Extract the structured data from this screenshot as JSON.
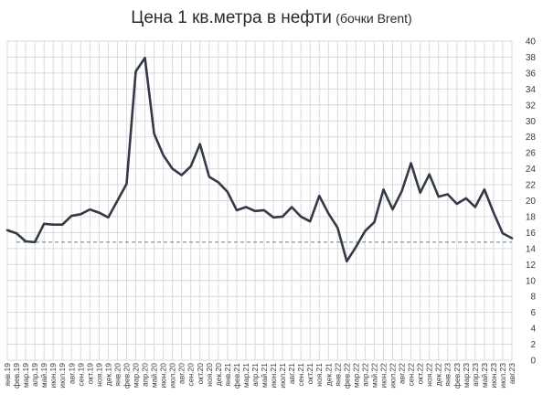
{
  "chart_data": {
    "type": "line",
    "title": "Цена 1 кв.метра в нефти",
    "subtitle": "(бочки Brent)",
    "xlabel": "",
    "ylabel": "",
    "ylim": [
      0,
      40
    ],
    "yticks": [
      0,
      2,
      4,
      6,
      8,
      10,
      12,
      14,
      16,
      18,
      20,
      22,
      24,
      26,
      28,
      30,
      32,
      34,
      36,
      38,
      40
    ],
    "grid": true,
    "y_axis_side": "right",
    "categories": [
      "янв.19",
      "фев.19",
      "мар.19",
      "апр.19",
      "май.19",
      "июн.19",
      "июл.19",
      "авг.19",
      "сен.19",
      "окт.19",
      "ноя.19",
      "дек.19",
      "янв.20",
      "фев.20",
      "мар.20",
      "апр.20",
      "май.20",
      "июн.20",
      "июл.20",
      "авг.20",
      "сен.20",
      "окт.20",
      "ноя.20",
      "дек.20",
      "янв.21",
      "фев.21",
      "мар.21",
      "апр.21",
      "май.21",
      "июн.21",
      "июл.21",
      "авг.21",
      "сен.21",
      "окт.21",
      "ноя.21",
      "дек.21",
      "янв.22",
      "фев.22",
      "мар.22",
      "апр.22",
      "май.22",
      "июн.22",
      "июл.22",
      "авг.22",
      "сен.22",
      "окт.22",
      "ноя.22",
      "дек.22",
      "янв.23",
      "фев.23",
      "мар.23",
      "апр.23",
      "май.23",
      "июн.23",
      "июл.23",
      "авг.23"
    ],
    "series": [
      {
        "name": "",
        "color": "#323a48",
        "values": [
          16.3,
          15.9,
          14.9,
          14.8,
          17.1,
          17.0,
          17.0,
          18.1,
          18.3,
          18.9,
          18.5,
          17.9,
          20.0,
          22.1,
          36.2,
          37.9,
          28.4,
          25.7,
          24.0,
          23.2,
          24.3,
          27.1,
          23.0,
          22.3,
          21.1,
          18.8,
          19.2,
          18.7,
          18.8,
          17.9,
          18.0,
          19.2,
          18.0,
          17.4,
          20.6,
          18.4,
          16.6,
          12.4,
          14.2,
          16.2,
          17.3,
          21.4,
          18.9,
          21.2,
          24.7,
          21.0,
          23.3,
          20.5,
          20.8,
          19.6,
          20.3,
          19.2,
          21.4,
          18.5,
          15.9,
          15.3
        ]
      }
    ],
    "reference_line": {
      "value": 14.8,
      "color": "#5b7fa8",
      "style": "dashed"
    }
  }
}
